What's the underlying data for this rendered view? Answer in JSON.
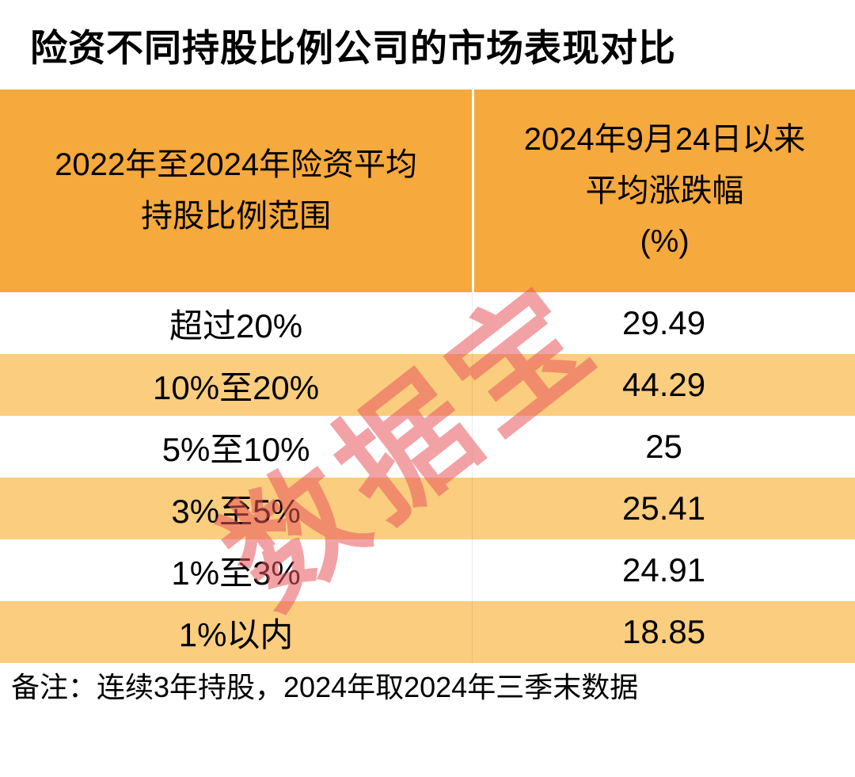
{
  "title": "险资不同持股比例公司的市场表现对比",
  "watermark": "数据宝",
  "note": "备注：连续3年持股，2024年取2024年三季末数据",
  "colors": {
    "header_bg": "#F6A93C",
    "alt_row_bg": "#FBCD7E",
    "watermark": "#E8575C",
    "text": "#000000"
  },
  "table": {
    "header": {
      "col1_lines": [
        "2022年至2024年险资平均",
        "持股比例范围"
      ],
      "col2_lines": [
        "2024年9月24日以来",
        "平均涨跌幅",
        "(%)"
      ]
    },
    "rows": [
      {
        "range": "超过20%",
        "change": "29.49"
      },
      {
        "range": "10%至20%",
        "change": "44.29"
      },
      {
        "range": "5%至10%",
        "change": "25"
      },
      {
        "range": "3%至5%",
        "change": "25.41"
      },
      {
        "range": "1%至3%",
        "change": "24.91"
      },
      {
        "range": "1%以内",
        "change": "18.85"
      }
    ]
  },
  "chart_data": {
    "type": "table",
    "title": "险资不同持股比例公司的市场表现对比",
    "columns": [
      "2022年至2024年险资平均持股比例范围",
      "2024年9月24日以来平均涨跌幅(%)"
    ],
    "rows": [
      [
        "超过20%",
        29.49
      ],
      [
        "10%至20%",
        44.29
      ],
      [
        "5%至10%",
        25
      ],
      [
        "3%至5%",
        25.41
      ],
      [
        "1%至3%",
        24.91
      ],
      [
        "1%以内",
        18.85
      ]
    ],
    "note": "备注：连续3年持股，2024年取2024年三季末数据"
  }
}
